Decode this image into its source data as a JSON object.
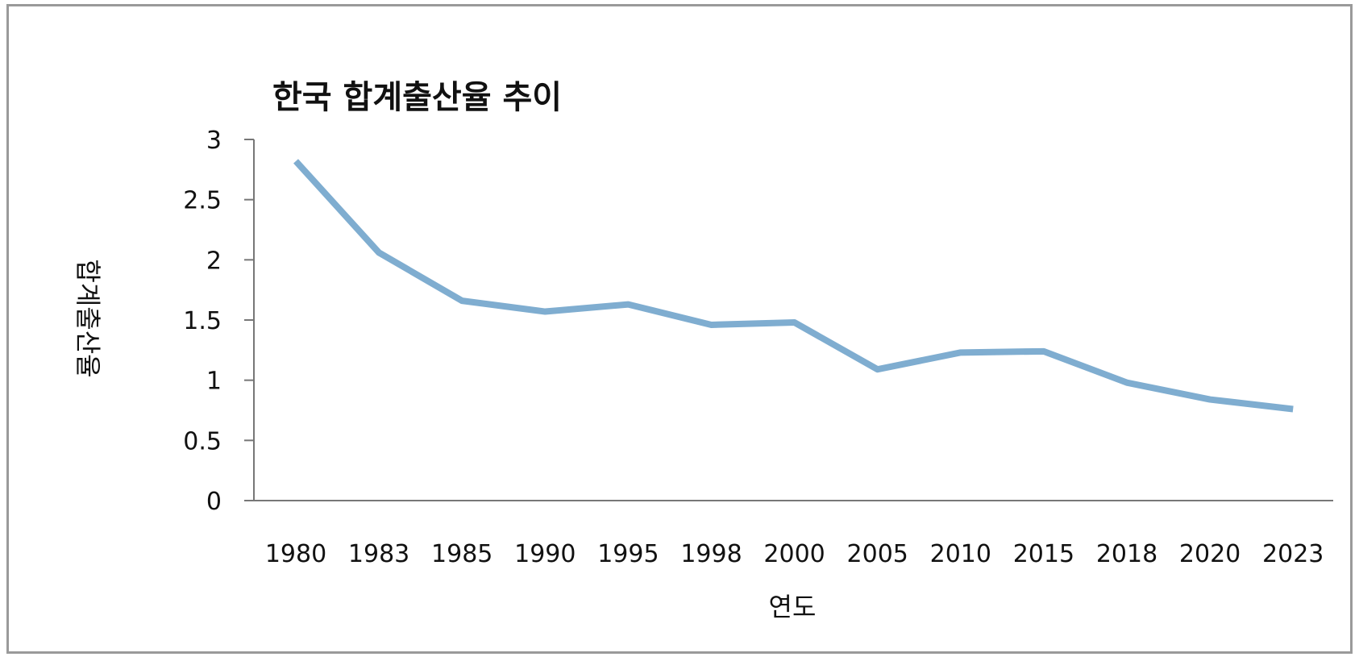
{
  "chart_data": {
    "type": "line",
    "title": "한국 합계출산율 추이",
    "xlabel": "연도",
    "ylabel": "합계출산율",
    "categories": [
      "1980",
      "1983",
      "1985",
      "1990",
      "1995",
      "1998",
      "2000",
      "2005",
      "2010",
      "2015",
      "2018",
      "2020",
      "2023"
    ],
    "series": [
      {
        "values": [
          2.82,
          2.06,
          1.66,
          1.57,
          1.63,
          1.46,
          1.48,
          1.09,
          1.23,
          1.24,
          0.98,
          0.84,
          0.76
        ]
      }
    ],
    "ylim": [
      0,
      3
    ],
    "yticks": [
      "0",
      "0.5",
      "1",
      "1.5",
      "2",
      "2.5",
      "3"
    ],
    "grid": false,
    "legend": "none",
    "line_color": "#7fadd0",
    "axis_color": "#777777"
  }
}
